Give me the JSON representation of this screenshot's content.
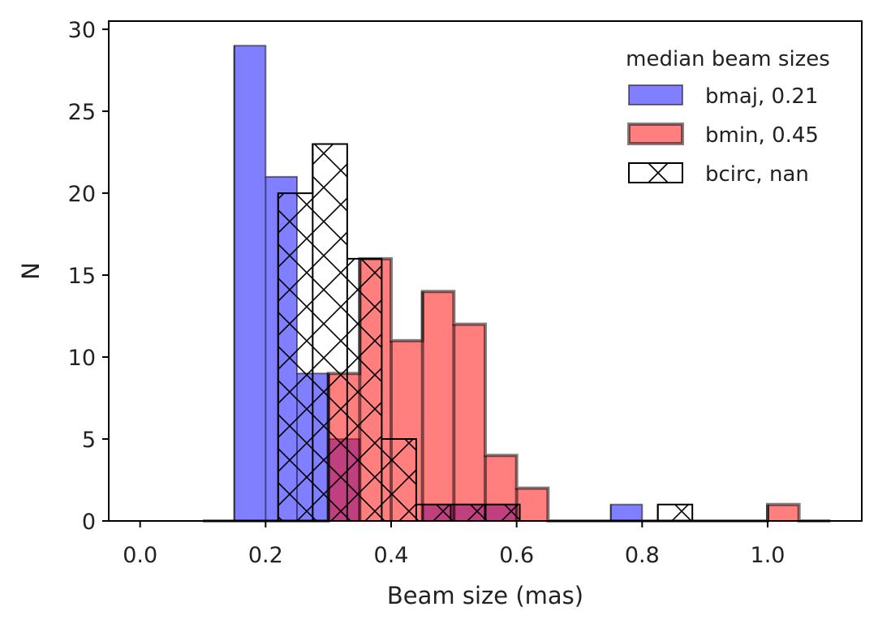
{
  "chart_data": {
    "type": "bar",
    "xlabel": "Beam size (mas)",
    "ylabel": "N",
    "xlim": [
      -0.05,
      1.15
    ],
    "ylim": [
      0,
      30.5
    ],
    "xticks": [
      "0.0",
      "0.2",
      "0.4",
      "0.6",
      "0.8",
      "1.0"
    ],
    "yticks": [
      "0",
      "5",
      "10",
      "15",
      "20",
      "25",
      "30"
    ],
    "grid": false,
    "legend": {
      "title": "median beam sizes",
      "position": "top-right",
      "entries": [
        "bmaj, 0.21",
        "bmin, 0.45",
        "bcirc, nan"
      ]
    },
    "series": [
      {
        "name": "bmaj, 0.21",
        "color": "#0000ff",
        "alpha": 0.5,
        "bin_edges": [
          0.1,
          0.15,
          0.2,
          0.25,
          0.3,
          0.35,
          0.4,
          0.45,
          0.5,
          0.55,
          0.6,
          0.65,
          0.7,
          0.75,
          0.8,
          0.85,
          0.9,
          0.95,
          1.0,
          1.05,
          1.1
        ],
        "values": [
          0,
          29,
          21,
          9,
          5,
          0,
          0,
          1,
          1,
          1,
          0,
          0,
          0,
          1,
          0,
          0,
          0,
          0,
          0,
          0
        ]
      },
      {
        "name": "bmin, 0.45",
        "color": "#ff0000",
        "alpha": 0.5,
        "bin_edges": [
          0.1,
          0.15,
          0.2,
          0.25,
          0.3,
          0.35,
          0.4,
          0.45,
          0.5,
          0.55,
          0.6,
          0.65,
          0.7,
          0.75,
          0.8,
          0.85,
          0.9,
          0.95,
          1.0,
          1.05,
          1.1
        ],
        "values": [
          0,
          0,
          0,
          0,
          9,
          16,
          11,
          14,
          12,
          4,
          2,
          0,
          0,
          0,
          0,
          0,
          0,
          0,
          1,
          0
        ]
      },
      {
        "name": "bcirc, nan",
        "color": "#000000",
        "hatch": "x",
        "bin_edges": [
          0.22,
          0.275,
          0.33,
          0.385,
          0.44,
          0.495,
          0.55,
          0.605,
          0.66,
          0.715,
          0.77,
          0.825,
          0.88
        ],
        "values": [
          20,
          23,
          16,
          5,
          1,
          1,
          1,
          0,
          0,
          0,
          0,
          1
        ]
      }
    ]
  }
}
